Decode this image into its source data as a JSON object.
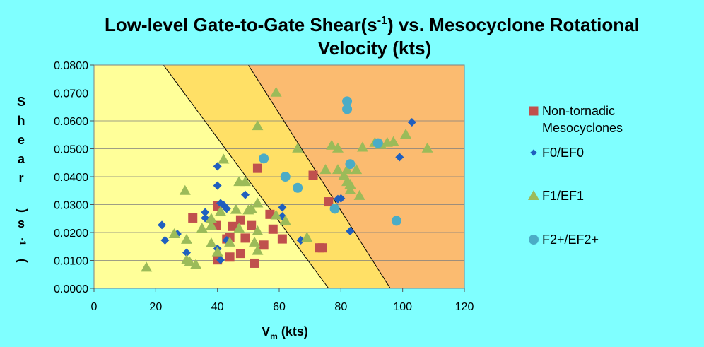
{
  "chart_data": {
    "type": "scatter",
    "title_parts": {
      "prefix": "Low-level Gate-to-Gate Shear(s",
      "sup": "-1",
      "suffix": ") vs. Mesocyclone Rotational",
      "line2": "Velocity (kts)"
    },
    "xlabel": {
      "main": "V",
      "sub": "m",
      "rest": " (kts)"
    },
    "ylabel": {
      "letters": [
        "S",
        "h",
        "e",
        "a",
        "r"
      ],
      "paren_open": "(",
      "s": "s",
      "sup": "-1",
      "paren_close": ")"
    },
    "xlim": [
      0,
      120
    ],
    "ylim": [
      0,
      0.08
    ],
    "x_ticks": [
      "0",
      "20",
      "40",
      "60",
      "80",
      "100",
      "120"
    ],
    "y_ticks": [
      "0.0000",
      "0.0100",
      "0.0200",
      "0.0300",
      "0.0400",
      "0.0500",
      "0.0600",
      "0.0700",
      "0.0800"
    ],
    "grid": true,
    "legend_position": "right",
    "zones": {
      "line1": [
        [
          22.5,
          0.08
        ],
        [
          76,
          0
        ]
      ],
      "line2": [
        [
          50,
          0.08
        ],
        [
          96,
          0
        ]
      ],
      "colors": [
        "#ffff99",
        "#ffe066",
        "#fbbb70"
      ]
    },
    "series": [
      {
        "name": "Non-tornadic Mesocyclones",
        "marker": "square",
        "color": "#c0504d",
        "points": [
          [
            32,
            0.0252
          ],
          [
            39.5,
            0.0225
          ],
          [
            40,
            0.0295
          ],
          [
            40,
            0.0102
          ],
          [
            43,
            0.0177
          ],
          [
            44,
            0.0112
          ],
          [
            44,
            0.0182
          ],
          [
            45,
            0.0222
          ],
          [
            47.5,
            0.0245
          ],
          [
            47.5,
            0.0125
          ],
          [
            49,
            0.018
          ],
          [
            51,
            0.0225
          ],
          [
            52,
            0.009
          ],
          [
            53,
            0.043
          ],
          [
            55,
            0.0155
          ],
          [
            57,
            0.0265
          ],
          [
            58,
            0.0212
          ],
          [
            61,
            0.0177
          ],
          [
            71,
            0.0405
          ],
          [
            73,
            0.0145
          ],
          [
            74,
            0.0145
          ],
          [
            76,
            0.031
          ]
        ]
      },
      {
        "name": "F0/EF0",
        "marker": "diamond",
        "color": "#1f5fbf",
        "points": [
          [
            22,
            0.0227
          ],
          [
            23,
            0.0172
          ],
          [
            27,
            0.0195
          ],
          [
            30,
            0.0128
          ],
          [
            36,
            0.0272
          ],
          [
            36,
            0.0252
          ],
          [
            40,
            0.0368
          ],
          [
            40,
            0.0437
          ],
          [
            40,
            0.0142
          ],
          [
            41,
            0.0305
          ],
          [
            41,
            0.0102
          ],
          [
            42,
            0.0298
          ],
          [
            43,
            0.0285
          ],
          [
            43,
            0.0172
          ],
          [
            49,
            0.0335
          ],
          [
            61,
            0.029
          ],
          [
            61,
            0.0258
          ],
          [
            67,
            0.0172
          ],
          [
            79,
            0.032
          ],
          [
            80,
            0.0322
          ],
          [
            83,
            0.0205
          ],
          [
            99,
            0.047
          ],
          [
            103,
            0.0595
          ]
        ]
      },
      {
        "name": "F1/EF1",
        "marker": "triangle",
        "color": "#9bbb59",
        "points": [
          [
            17,
            0.0075
          ],
          [
            26,
            0.0195
          ],
          [
            29.5,
            0.035
          ],
          [
            30,
            0.0175
          ],
          [
            30,
            0.0102
          ],
          [
            31,
            0.0095
          ],
          [
            33,
            0.0085
          ],
          [
            35,
            0.0215
          ],
          [
            38,
            0.0162
          ],
          [
            38,
            0.0225
          ],
          [
            38,
            0.025
          ],
          [
            40,
            0.013
          ],
          [
            41,
            0.0275
          ],
          [
            42,
            0.0462
          ],
          [
            44,
            0.0165
          ],
          [
            46,
            0.0282
          ],
          [
            47,
            0.0215
          ],
          [
            47,
            0.0382
          ],
          [
            49,
            0.0382
          ],
          [
            50,
            0.028
          ],
          [
            51,
            0.0285
          ],
          [
            52,
            0.0165
          ],
          [
            53,
            0.0135
          ],
          [
            53,
            0.0205
          ],
          [
            53,
            0.0305
          ],
          [
            53,
            0.0582
          ],
          [
            59,
            0.0702
          ],
          [
            59,
            0.0262
          ],
          [
            62,
            0.0242
          ],
          [
            66,
            0.0502
          ],
          [
            69,
            0.0182
          ],
          [
            75,
            0.0425
          ],
          [
            77,
            0.0512
          ],
          [
            79,
            0.0425
          ],
          [
            79,
            0.0502
          ],
          [
            81,
            0.0405
          ],
          [
            82,
            0.0425
          ],
          [
            82,
            0.0382
          ],
          [
            83,
            0.0352
          ],
          [
            83,
            0.0372
          ],
          [
            85,
            0.0425
          ],
          [
            86,
            0.0332
          ],
          [
            87,
            0.0505
          ],
          [
            91,
            0.0522
          ],
          [
            93,
            0.0515
          ],
          [
            95,
            0.0522
          ],
          [
            97,
            0.0525
          ],
          [
            101,
            0.0552
          ],
          [
            108,
            0.0502
          ]
        ]
      },
      {
        "name": "F2+/EF2+",
        "marker": "circle",
        "color": "#4bacc6",
        "points": [
          [
            55,
            0.0465
          ],
          [
            62,
            0.04
          ],
          [
            66,
            0.036
          ],
          [
            78,
            0.0285
          ],
          [
            82,
            0.067
          ],
          [
            82,
            0.0642
          ],
          [
            83,
            0.0445
          ],
          [
            92,
            0.052
          ],
          [
            98,
            0.0242
          ]
        ]
      }
    ]
  }
}
